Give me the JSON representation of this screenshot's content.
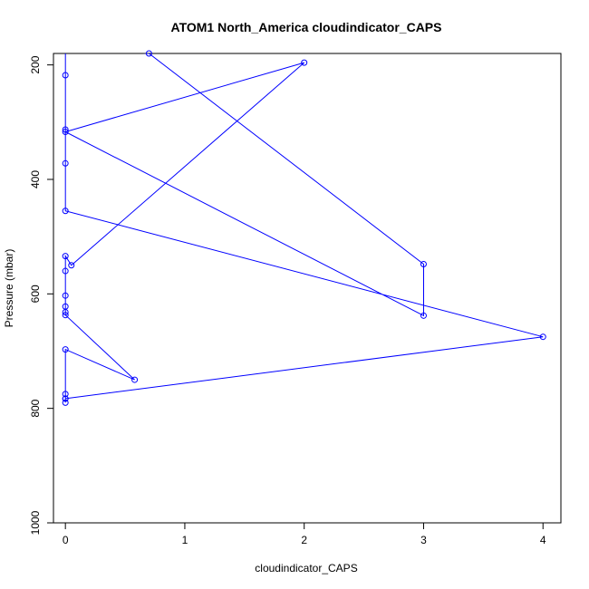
{
  "chart_data": {
    "type": "line",
    "title": "ATOM1 North_America cloudindicator_CAPS",
    "xlabel": "cloudindicator_CAPS",
    "ylabel": "Pressure (mbar)",
    "xlim": [
      -0.1,
      4.15
    ],
    "ylim": [
      1000,
      180
    ],
    "y_reversed": true,
    "x_ticks": [
      0,
      1,
      2,
      3,
      4
    ],
    "y_ticks": [
      200,
      400,
      600,
      800,
      1000
    ],
    "grid": false,
    "color": "#0000ff",
    "series": [
      {
        "points": [
          {
            "x": 0,
            "y": 790
          },
          {
            "x": 0,
            "y": 783
          },
          {
            "x": 0,
            "y": 775
          },
          {
            "x": 0,
            "y": 697
          },
          {
            "x": 0.58,
            "y": 750
          },
          {
            "x": 0,
            "y": 637
          },
          {
            "x": 0,
            "y": 632
          },
          {
            "x": 0,
            "y": 622
          },
          {
            "x": 0,
            "y": 603
          },
          {
            "x": 0,
            "y": 560
          },
          {
            "x": 0,
            "y": 534
          },
          {
            "x": 0.05,
            "y": 550
          },
          {
            "x": 2.0,
            "y": 196
          },
          {
            "x": 0,
            "y": 317
          },
          {
            "x": 3.0,
            "y": 638
          },
          {
            "x": 3.0,
            "y": 548
          },
          {
            "x": 0.7,
            "y": 180
          },
          {
            "x": 0,
            "y": 170
          },
          {
            "x": 0,
            "y": 218
          },
          {
            "x": 0,
            "y": 313
          },
          {
            "x": 0,
            "y": 372
          },
          {
            "x": 0,
            "y": 455
          },
          {
            "x": 4.0,
            "y": 675
          },
          {
            "x": 0,
            "y": 783
          }
        ]
      }
    ]
  }
}
